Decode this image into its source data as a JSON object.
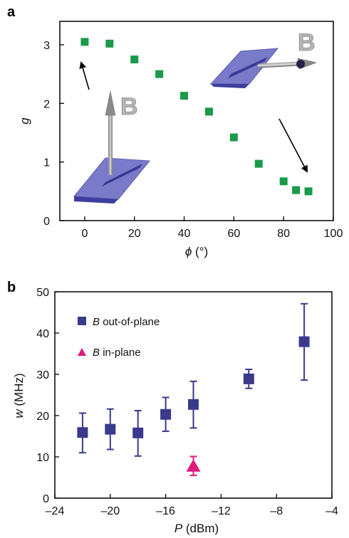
{
  "colors": {
    "green": "#1a9a4a",
    "navy": "#3a3a8c",
    "magenta": "#e0197d"
  },
  "chart_data": [
    {
      "panel_label": "a",
      "type": "scatter",
      "xlabel_symbol": "ϕ",
      "xlabel_unit": "(°)",
      "ylabel": "g",
      "xlim": [
        -10,
        100
      ],
      "ylim": [
        0,
        3.4
      ],
      "x_ticks": [
        "0",
        "20",
        "40",
        "60",
        "80",
        "100"
      ],
      "y_ticks": [
        "0",
        "1",
        "2",
        "3"
      ],
      "x": [
        0,
        10,
        20,
        30,
        40,
        50,
        60,
        70,
        80,
        85,
        90
      ],
      "y": [
        3.05,
        3.02,
        2.75,
        2.5,
        2.13,
        1.86,
        1.42,
        0.97,
        0.67,
        0.52,
        0.5
      ],
      "annotations": [
        "B",
        "B"
      ],
      "marker_color": "#1a9a4a",
      "grid": false
    },
    {
      "panel_label": "b",
      "type": "scatter",
      "xlabel_symbol": "P",
      "xlabel_unit": "(dBm)",
      "ylabel_symbol": "w",
      "ylabel_unit": "(MHz)",
      "xlim": [
        -24,
        -4
      ],
      "ylim": [
        0,
        50
      ],
      "x_ticks": [
        "–24",
        "–20",
        "–16",
        "–12",
        "–8",
        "–4"
      ],
      "y_ticks": [
        "0",
        "10",
        "20",
        "30",
        "40",
        "50"
      ],
      "series": [
        {
          "name_symbol": "B",
          "name_rest": "out-of-plane",
          "marker": "square",
          "color": "#3a3a8c",
          "x": [
            -22,
            -20,
            -18,
            -16,
            -14,
            -10,
            -6
          ],
          "y": [
            15.9,
            16.7,
            15.8,
            20.3,
            22.7,
            28.9,
            37.9
          ],
          "err_low": [
            11.0,
            11.8,
            10.2,
            16.2,
            17.0,
            26.6,
            28.6
          ],
          "err_high": [
            20.6,
            21.6,
            21.2,
            24.4,
            28.3,
            31.2,
            47.1
          ]
        },
        {
          "name_symbol": "B",
          "name_rest": "in-plane",
          "marker": "triangle",
          "color": "#e0197d",
          "x": [
            -14
          ],
          "y": [
            7.8
          ],
          "err_low": [
            5.5
          ],
          "err_high": [
            10.1
          ]
        }
      ],
      "legend_position": "top-left",
      "grid": false
    }
  ]
}
